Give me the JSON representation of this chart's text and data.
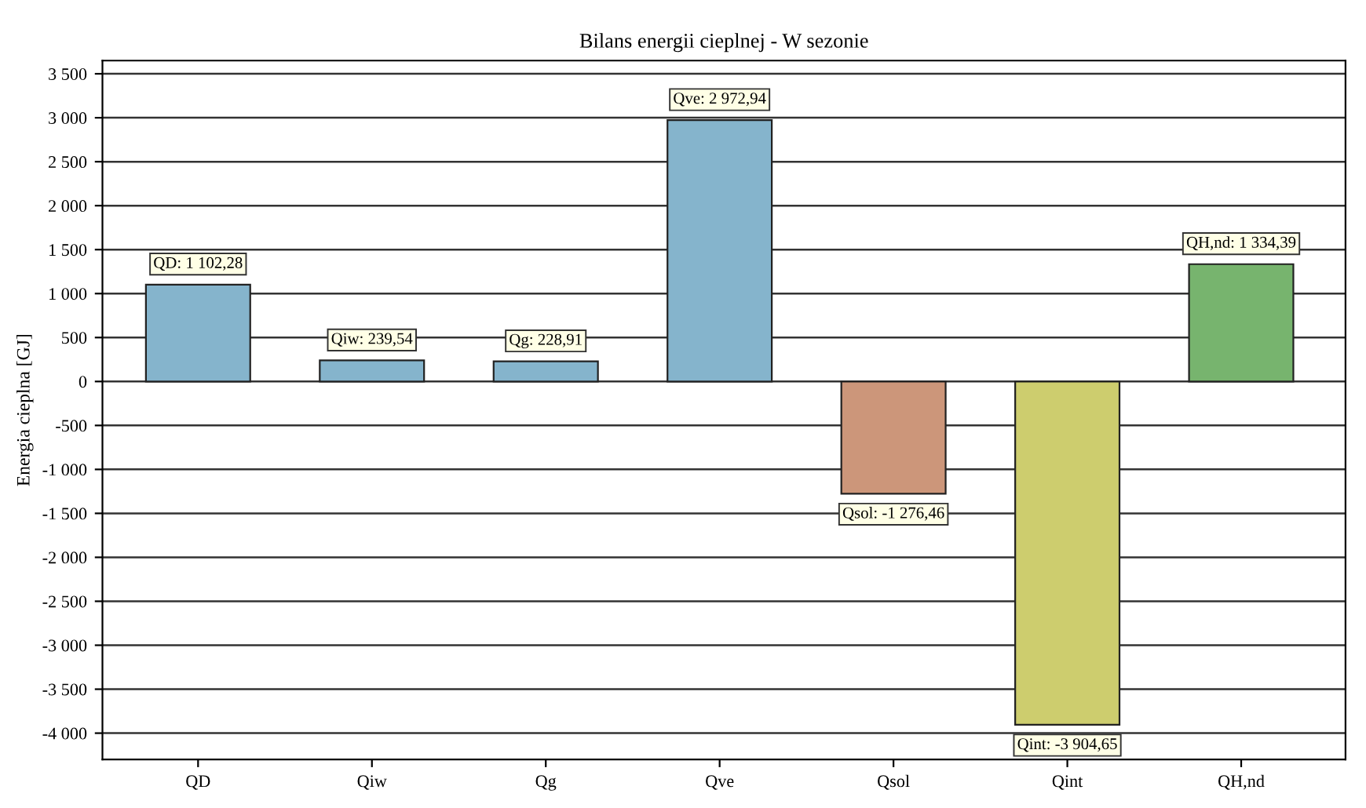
{
  "chart_data": {
    "type": "bar",
    "title": "Bilans energii cieplnej - W sezonie",
    "ylabel": "Energia cieplna [GJ]",
    "categories": [
      "QD",
      "Qiw",
      "Qg",
      "Qve",
      "Qsol",
      "Qint",
      "QH,nd"
    ],
    "values": [
      1102.28,
      239.54,
      228.91,
      2972.94,
      -1276.46,
      -3904.65,
      1334.39
    ],
    "colors": [
      "#85b4cc",
      "#85b4cc",
      "#85b4cc",
      "#85b4cc",
      "#cc967a",
      "#cdcd6e",
      "#77b46e"
    ],
    "value_labels": [
      "QD: 1 102,28",
      "Qiw: 239,54",
      "Qg: 228,91",
      "Qve: 2 972,94",
      "Qsol: -1 276,46",
      "Qint: -3 904,65",
      "QH,nd: 1 334,39"
    ],
    "ylim": [
      -4300,
      3650
    ],
    "yticks": [
      {
        "value": 3500,
        "label": "3 500"
      },
      {
        "value": 3000,
        "label": "3 000"
      },
      {
        "value": 2500,
        "label": "2 500"
      },
      {
        "value": 2000,
        "label": "2 000"
      },
      {
        "value": 1500,
        "label": "1 500"
      },
      {
        "value": 1000,
        "label": "1 000"
      },
      500,
      0,
      -500,
      {
        "value": -1000,
        "label": "-1 000"
      },
      {
        "value": -1500,
        "label": "-1 500"
      },
      {
        "value": -2000,
        "label": "-2 000"
      },
      {
        "value": -2500,
        "label": "-2 500"
      },
      {
        "value": -3000,
        "label": "-3 000"
      },
      {
        "value": -3500,
        "label": "-3 500"
      },
      {
        "value": -4000,
        "label": "-4 000"
      }
    ],
    "grid": "y"
  }
}
